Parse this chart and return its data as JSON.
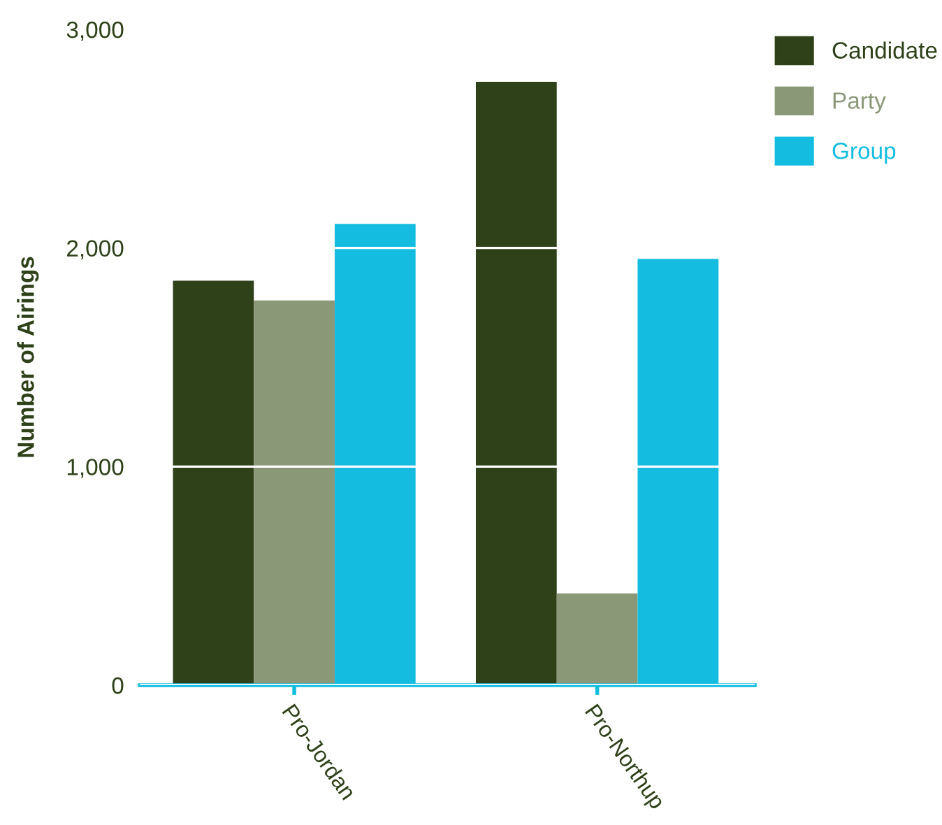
{
  "chart_data": {
    "type": "bar",
    "ylabel": "Number of Airings",
    "categories": [
      "Pro-Jordan",
      "Pro-Northup"
    ],
    "series": [
      {
        "name": "Candidate",
        "color": "#2e4119",
        "values": [
          1850,
          2760
        ]
      },
      {
        "name": "Party",
        "color": "#8b9878",
        "values": [
          1760,
          420
        ]
      },
      {
        "name": "Group",
        "color": "#14bde0",
        "values": [
          2110,
          1950
        ]
      }
    ],
    "ylim": [
      0,
      3000
    ],
    "yticks": [
      {
        "value": 0,
        "label": "0"
      },
      {
        "value": 1000,
        "label": "1,000"
      },
      {
        "value": 2000,
        "label": "2,000"
      },
      {
        "value": 3000,
        "label": "3,000"
      }
    ],
    "grid": "y",
    "legend": "top right"
  }
}
